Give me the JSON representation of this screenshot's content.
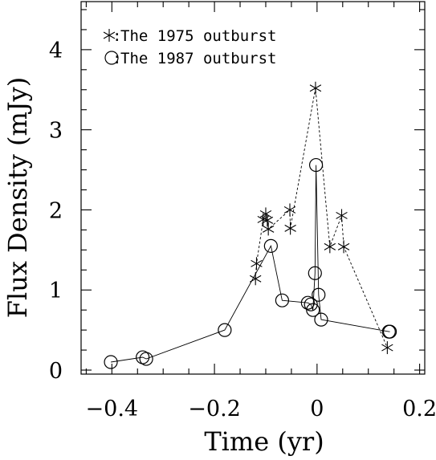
{
  "chart_data": {
    "type": "line",
    "xlabel": "Time (yr)",
    "ylabel": "Flux Density (mJy)",
    "xlim": [
      -0.46,
      0.21
    ],
    "ylim": [
      -0.05,
      4.6
    ],
    "xticks": [
      -0.4,
      -0.2,
      0,
      0.2
    ],
    "xtick_labels": [
      "−0.4",
      "−0.2",
      "0",
      "0.2"
    ],
    "yticks": [
      0,
      1,
      2,
      3,
      4
    ],
    "ytick_labels": [
      "0",
      "1",
      "2",
      "3",
      "4"
    ],
    "x_minor_step": 0.05,
    "y_minor_step": 0.25,
    "grid": false,
    "legend_position": "top-left",
    "series": [
      {
        "name": "The 1975 outburst",
        "marker": "asterisk",
        "line": "dashed",
        "points": [
          [
            -0.12,
            1.14
          ],
          [
            -0.118,
            1.33
          ],
          [
            -0.105,
            1.88
          ],
          [
            -0.1,
            1.95
          ],
          [
            -0.097,
            1.87
          ],
          [
            -0.095,
            1.76
          ],
          [
            -0.053,
            2.0
          ],
          [
            -0.052,
            1.77
          ],
          [
            -0.003,
            3.52
          ],
          [
            0.025,
            1.54
          ],
          [
            0.048,
            1.93
          ],
          [
            0.052,
            1.54
          ],
          [
            0.137,
            0.28
          ]
        ]
      },
      {
        "name": "The 1987 outburst",
        "marker": "circle",
        "line": "solid",
        "points": [
          [
            -0.402,
            0.1
          ],
          [
            -0.34,
            0.16
          ],
          [
            -0.333,
            0.14
          ],
          [
            -0.18,
            0.5
          ],
          [
            -0.09,
            1.55
          ],
          [
            -0.068,
            0.87
          ],
          [
            -0.018,
            0.84
          ],
          [
            -0.012,
            0.82
          ],
          [
            -0.008,
            0.75
          ],
          [
            -0.004,
            1.21
          ],
          [
            -0.002,
            2.56
          ],
          [
            0.003,
            0.94
          ],
          [
            0.008,
            0.63
          ],
          [
            0.14,
            0.48
          ],
          [
            0.142,
            0.48
          ]
        ]
      }
    ]
  }
}
